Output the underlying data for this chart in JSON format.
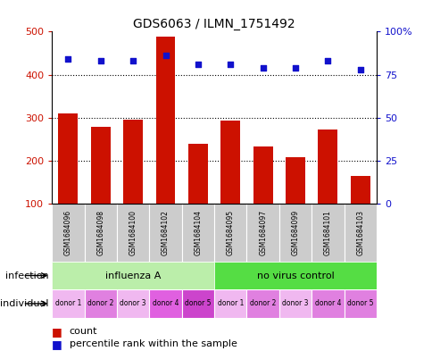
{
  "title": "GDS6063 / ILMN_1751492",
  "samples": [
    "GSM1684096",
    "GSM1684098",
    "GSM1684100",
    "GSM1684102",
    "GSM1684104",
    "GSM1684095",
    "GSM1684097",
    "GSM1684099",
    "GSM1684101",
    "GSM1684103"
  ],
  "counts": [
    310,
    278,
    295,
    488,
    240,
    293,
    232,
    208,
    272,
    165
  ],
  "percentiles": [
    84,
    83,
    83,
    86,
    81,
    81,
    79,
    79,
    83,
    78
  ],
  "y_min": 100,
  "y_max": 500,
  "y_ticks": [
    100,
    200,
    300,
    400,
    500
  ],
  "y2_ticks": [
    0,
    25,
    50,
    75,
    100
  ],
  "bar_color": "#cc1100",
  "dot_color": "#1111cc",
  "infection_labels": [
    "influenza A",
    "no virus control"
  ],
  "infection_color_light": "#bbeeaa",
  "infection_color_dark": "#55dd44",
  "individual_labels": [
    "donor 1",
    "donor 2",
    "donor 3",
    "donor 4",
    "donor 5",
    "donor 1",
    "donor 2",
    "donor 3",
    "donor 4",
    "donor 5"
  ],
  "ind_colors": [
    "#f0b8f0",
    "#e080e0",
    "#f0b8f0",
    "#e060e0",
    "#cc44cc",
    "#f0b8f0",
    "#e080e0",
    "#f0b8f0",
    "#e080e0",
    "#e080e0"
  ],
  "legend_count": "count",
  "legend_percentile": "percentile rank within the sample",
  "label_infection": "infection",
  "label_individual": "individual",
  "sample_bg": "#cccccc"
}
